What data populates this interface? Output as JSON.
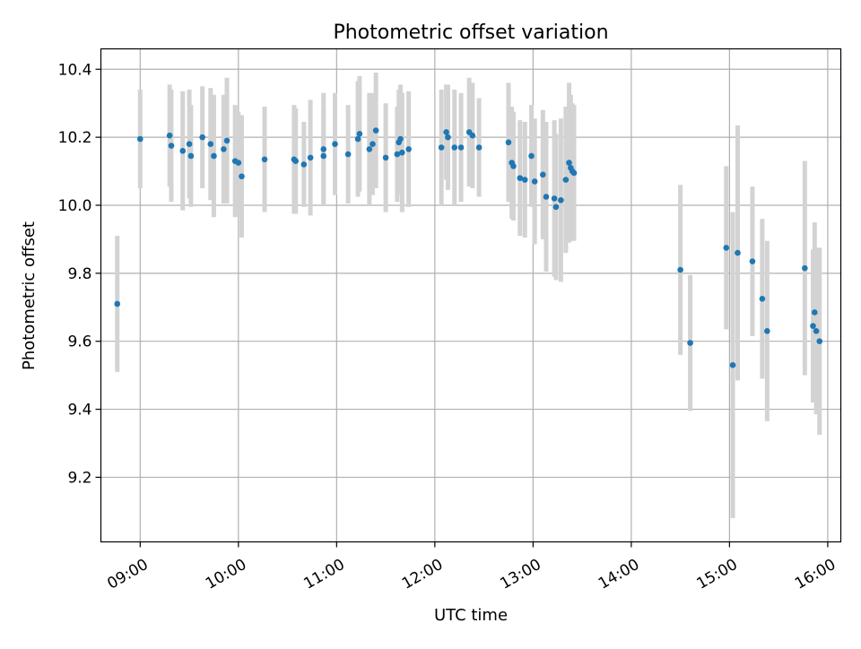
{
  "chart_data": {
    "type": "scatter",
    "title": "Photometric offset variation",
    "xlabel": "UTC time",
    "ylabel": "Photometric offset",
    "xlim": [
      "08:36",
      "16:08"
    ],
    "ylim": [
      9.01,
      10.46
    ],
    "x_ticks": [
      "09:00",
      "10:00",
      "11:00",
      "12:00",
      "13:00",
      "14:00",
      "15:00",
      "16:00"
    ],
    "y_ticks": [
      9.2,
      9.4,
      9.6,
      9.8,
      10.0,
      10.2,
      10.4
    ],
    "y_tick_labels": [
      "9.2",
      "9.4",
      "9.6",
      "9.8",
      "10.0",
      "10.2",
      "10.4"
    ],
    "grid": true,
    "point_color": "#1f77b4",
    "errorbar_color": "#d3d3d3",
    "series": [
      {
        "x": [
          "08:46",
          "09:00",
          "09:18",
          "09:19",
          "09:26",
          "09:30",
          "09:31",
          "09:38",
          "09:43",
          "09:45",
          "09:51",
          "09:53",
          "09:58",
          "10:00",
          "10:02",
          "10:16",
          "10:34",
          "10:35",
          "10:40",
          "10:44",
          "10:52",
          "10:52",
          "10:59",
          "11:07",
          "11:13",
          "11:14",
          "11:20",
          "11:22",
          "11:24",
          "11:30",
          "11:37",
          "11:38",
          "11:39",
          "11:40",
          "11:44",
          "12:04",
          "12:07",
          "12:08",
          "12:12",
          "12:16",
          "12:21",
          "12:23",
          "12:27",
          "12:45",
          "12:47",
          "12:48",
          "12:52",
          "12:55",
          "12:59",
          "13:01",
          "13:06",
          "13:08",
          "13:13",
          "13:14",
          "13:17",
          "13:20",
          "13:22",
          "13:23",
          "13:24",
          "13:25",
          "14:30",
          "14:36",
          "14:58",
          "15:02",
          "15:05",
          "15:14",
          "15:20",
          "15:23",
          "15:46",
          "15:51",
          "15:52",
          "15:53",
          "15:55"
        ],
        "y": [
          9.71,
          10.195,
          10.205,
          10.175,
          10.16,
          10.18,
          10.145,
          10.2,
          10.18,
          10.145,
          10.165,
          10.19,
          10.13,
          10.125,
          10.085,
          10.135,
          10.135,
          10.13,
          10.12,
          10.14,
          10.165,
          10.145,
          10.18,
          10.15,
          10.195,
          10.21,
          10.165,
          10.18,
          10.22,
          10.14,
          10.15,
          10.185,
          10.195,
          10.155,
          10.165,
          10.17,
          10.215,
          10.2,
          10.17,
          10.17,
          10.215,
          10.205,
          10.17,
          10.185,
          10.125,
          10.115,
          10.08,
          10.075,
          10.145,
          10.07,
          10.09,
          10.025,
          10.02,
          9.995,
          10.015,
          10.075,
          10.125,
          10.11,
          10.1,
          10.095,
          9.81,
          9.595,
          9.875,
          9.53,
          9.86,
          9.835,
          9.725,
          9.63,
          9.815,
          9.645,
          9.685,
          9.63,
          9.6
        ],
        "y_err": [
          0.2,
          0.145,
          0.15,
          0.165,
          0.175,
          0.16,
          0.15,
          0.15,
          0.165,
          0.18,
          0.16,
          0.185,
          0.165,
          0.15,
          0.18,
          0.155,
          0.16,
          0.155,
          0.125,
          0.17,
          0.165,
          0.14,
          0.15,
          0.145,
          0.17,
          0.17,
          0.165,
          0.15,
          0.17,
          0.16,
          0.14,
          0.155,
          0.16,
          0.175,
          0.17,
          0.17,
          0.14,
          0.155,
          0.17,
          0.16,
          0.16,
          0.155,
          0.145,
          0.175,
          0.165,
          0.16,
          0.17,
          0.17,
          0.15,
          0.185,
          0.19,
          0.22,
          0.23,
          0.215,
          0.24,
          0.215,
          0.235,
          0.215,
          0.2,
          0.2,
          0.25,
          0.2,
          0.24,
          0.45,
          0.375,
          0.22,
          0.235,
          0.265,
          0.315,
          0.225,
          0.265,
          0.245,
          0.275
        ]
      }
    ]
  }
}
